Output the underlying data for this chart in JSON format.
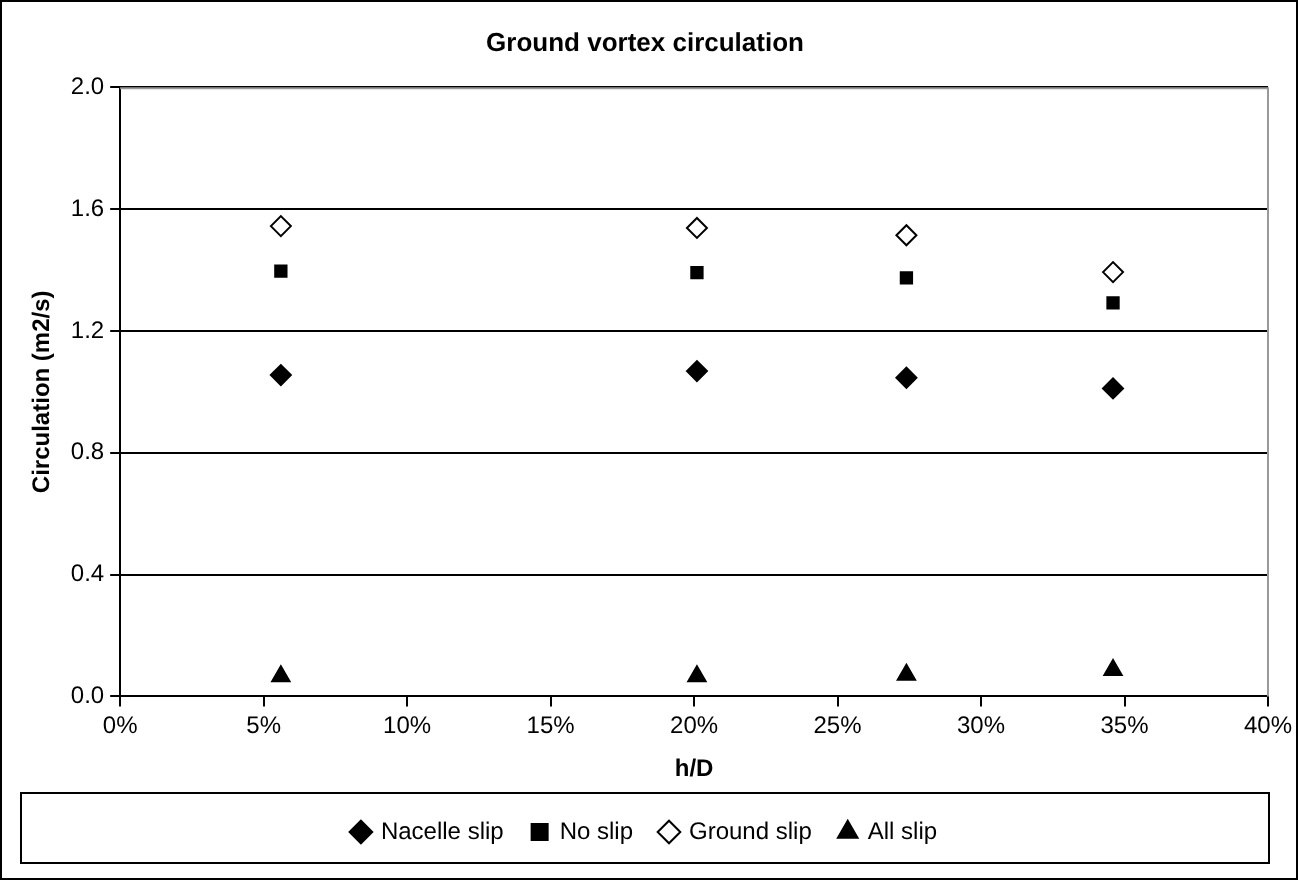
{
  "chart_data": {
    "type": "scatter",
    "title": "Ground vortex circulation",
    "xlabel": "h/D",
    "ylabel": "Circulation (m2/s)",
    "xlim": [
      0,
      40
    ],
    "xticks": [
      {
        "value": 0,
        "label": "0%"
      },
      {
        "value": 5,
        "label": "5%"
      },
      {
        "value": 10,
        "label": "10%"
      },
      {
        "value": 15,
        "label": "15%"
      },
      {
        "value": 20,
        "label": "20%"
      },
      {
        "value": 25,
        "label": "25%"
      },
      {
        "value": 30,
        "label": "30%"
      },
      {
        "value": 35,
        "label": "35%"
      },
      {
        "value": 40,
        "label": "40%"
      }
    ],
    "ylim": [
      0,
      2
    ],
    "yticks": [
      {
        "value": 0,
        "label": "0.0"
      },
      {
        "value": 0.4,
        "label": "0.4"
      },
      {
        "value": 0.8,
        "label": "0.8"
      },
      {
        "value": 1.2,
        "label": "1.2"
      },
      {
        "value": 1.6,
        "label": "1.6"
      },
      {
        "value": 2,
        "label": "2.0"
      }
    ],
    "grid": "y",
    "legend": "bottom",
    "x": [
      5.6,
      20.1,
      27.4,
      34.6
    ],
    "series": [
      {
        "name": "Nacelle slip",
        "color": "#000000",
        "marker": "diamond",
        "values": [
          1.055,
          1.068,
          1.046,
          1.011
        ]
      },
      {
        "name": "No slip",
        "color": "#000000",
        "marker": "square",
        "values": [
          1.396,
          1.391,
          1.374,
          1.292
        ]
      },
      {
        "name": "Ground slip",
        "color": "#ffffff",
        "marker": "diamond",
        "values": [
          1.544,
          1.538,
          1.514,
          1.393
        ]
      },
      {
        "name": "All slip",
        "color": "#000000",
        "marker": "triangle",
        "values": [
          0.066,
          0.066,
          0.071,
          0.087
        ]
      }
    ]
  }
}
